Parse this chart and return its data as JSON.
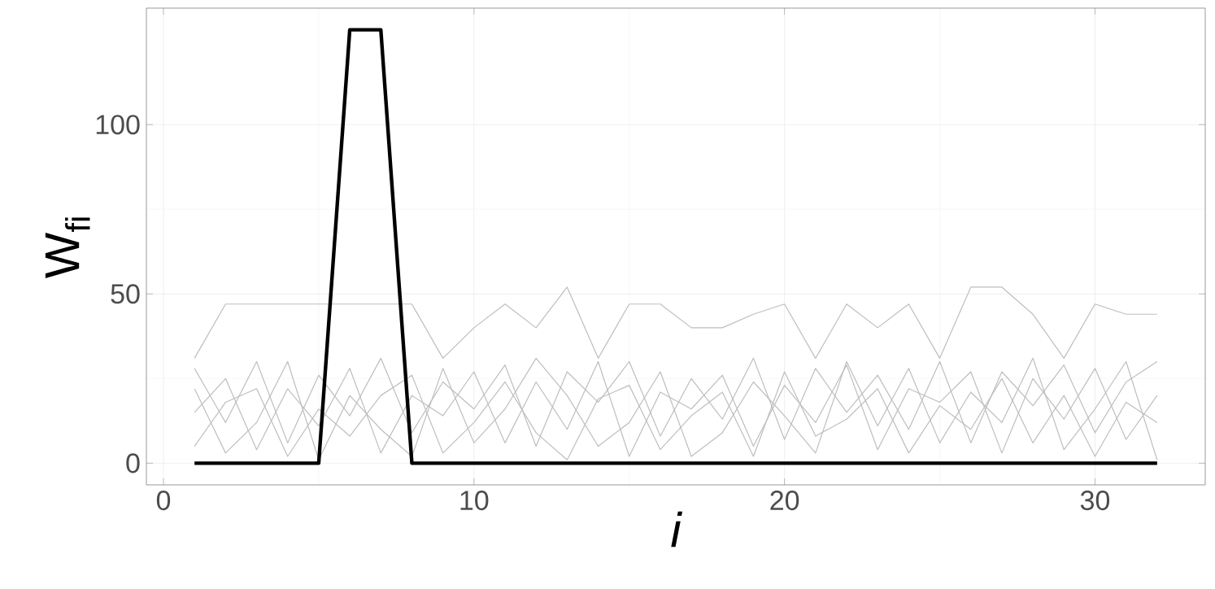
{
  "chart_data": {
    "type": "line",
    "xlabel": "i",
    "ylabel": "W$_{fi}$",
    "x": [
      1,
      2,
      3,
      4,
      5,
      6,
      7,
      8,
      9,
      10,
      11,
      12,
      13,
      14,
      15,
      16,
      17,
      18,
      19,
      20,
      21,
      22,
      23,
      24,
      25,
      26,
      27,
      28,
      29,
      30,
      31,
      32
    ],
    "series": [
      {
        "color": "#bebebe",
        "values": [
          31,
          47,
          47,
          47,
          47,
          47,
          47,
          47,
          31,
          40,
          47,
          40,
          52,
          31,
          47,
          47,
          40,
          40,
          44,
          47,
          31,
          47,
          40,
          47,
          31,
          52,
          52,
          44,
          31,
          47,
          44,
          44
        ]
      },
      {
        "color": "#bebebe",
        "values": [
          28,
          12,
          30,
          6,
          26,
          14,
          31,
          9,
          24,
          16,
          29,
          5,
          27,
          18,
          30,
          8,
          25,
          13,
          31,
          7,
          28,
          15,
          26,
          10,
          30,
          6,
          27,
          17,
          29,
          9,
          24,
          30
        ]
      },
      {
        "color": "#bebebe",
        "values": [
          15,
          25,
          4,
          22,
          11,
          28,
          3,
          20,
          14,
          27,
          6,
          24,
          10,
          30,
          2,
          21,
          16,
          26,
          5,
          23,
          12,
          29,
          4,
          22,
          18,
          27,
          3,
          25,
          13,
          28,
          7,
          20
        ]
      },
      {
        "color": "#bebebe",
        "values": [
          5,
          18,
          22,
          2,
          16,
          8,
          20,
          26,
          3,
          12,
          24,
          9,
          1,
          19,
          23,
          4,
          14,
          21,
          2,
          27,
          8,
          13,
          22,
          3,
          17,
          10,
          25,
          6,
          20,
          2,
          18,
          12
        ]
      },
      {
        "color": "#bebebe",
        "values": [
          22,
          3,
          12,
          30,
          1,
          20,
          10,
          2,
          28,
          6,
          16,
          31,
          20,
          5,
          12,
          27,
          2,
          9,
          24,
          14,
          3,
          30,
          11,
          28,
          6,
          21,
          12,
          31,
          4,
          16,
          30,
          1
        ]
      },
      {
        "color": "#000000",
        "values": [
          0,
          0,
          0,
          0,
          0,
          128,
          128,
          0,
          0,
          0,
          0,
          0,
          0,
          0,
          0,
          0,
          0,
          0,
          0,
          0,
          0,
          0,
          0,
          0,
          0,
          0,
          0,
          0,
          0,
          0,
          0,
          0
        ]
      }
    ],
    "xlim": [
      -0.55,
      33.55
    ],
    "ylim": [
      -6.4,
      134.4
    ],
    "xticks": [
      0,
      10,
      20,
      30
    ],
    "yticks": [
      0,
      50,
      100
    ],
    "grid": true,
    "marker": "none",
    "line_style": "solid"
  }
}
